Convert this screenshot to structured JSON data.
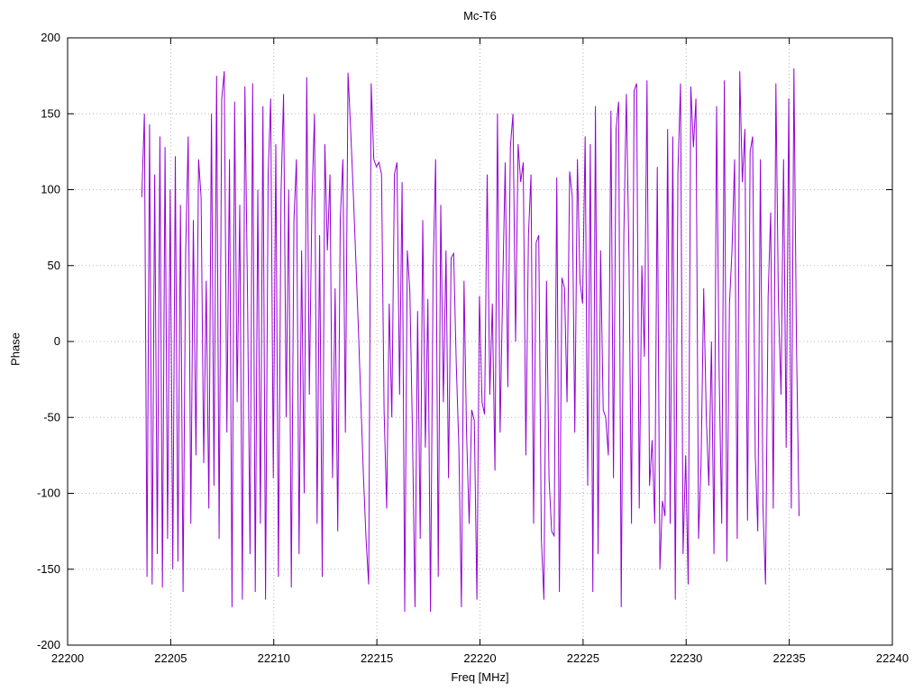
{
  "window": {
    "background": "#ffffff"
  },
  "chart_data": {
    "type": "line",
    "title": "Mc-T6",
    "xlabel": "Freq [MHz]",
    "ylabel": "Phase",
    "xlim": [
      22200,
      22240
    ],
    "ylim": [
      -200,
      200
    ],
    "x_ticks": [
      22200,
      22205,
      22210,
      22215,
      22220,
      22225,
      22230,
      22235,
      22240
    ],
    "y_ticks": [
      -200,
      -150,
      -100,
      -50,
      0,
      50,
      100,
      150,
      200
    ],
    "grid": "dotted",
    "grid_color": "#b3b3b3",
    "border_color": "#000000",
    "legend": "none",
    "series": [
      {
        "name": "Mc-T6",
        "color": "#9400d3",
        "x_start": 22203.6,
        "x_step": 0.125,
        "y_values": [
          95,
          150,
          -155,
          143,
          -160,
          110,
          -140,
          135,
          -162,
          128,
          -130,
          100,
          -150,
          122,
          -145,
          90,
          -165,
          60,
          135,
          -120,
          80,
          -75,
          120,
          95,
          -80,
          40,
          -110,
          150,
          -95,
          175,
          -130,
          160,
          178,
          -60,
          120,
          -175,
          158,
          -40,
          90,
          -170,
          168,
          30,
          -140,
          170,
          -165,
          100,
          -120,
          155,
          -170,
          110,
          160,
          -90,
          130,
          -155,
          98,
          163,
          -50,
          100,
          -162,
          80,
          120,
          -140,
          60,
          -100,
          174,
          -35,
          93,
          150,
          -120,
          70,
          -155,
          130,
          60,
          110,
          -90,
          35,
          -125,
          80,
          120,
          -60,
          177,
          140,
          100,
          55,
          10,
          -40,
          -90,
          -130,
          -160,
          170,
          120,
          115,
          118,
          110,
          -45,
          -110,
          25,
          -50,
          110,
          118,
          -35,
          105,
          -178,
          60,
          33,
          -60,
          -175,
          20,
          -130,
          80,
          -70,
          28,
          -178,
          45,
          120,
          -155,
          90,
          -40,
          60,
          -90,
          55,
          58,
          -15,
          -70,
          -175,
          40,
          -60,
          -120,
          -45,
          -52,
          -170,
          30,
          -40,
          -48,
          110,
          -35,
          25,
          -85,
          150,
          -60,
          35,
          118,
          -30,
          128,
          150,
          0,
          130,
          105,
          118,
          -75,
          70,
          110,
          -120,
          65,
          70,
          -130,
          -170,
          40,
          -90,
          -125,
          -128,
          108,
          -165,
          42,
          35,
          -40,
          112,
          95,
          -60,
          120,
          40,
          25,
          135,
          -95,
          130,
          -165,
          155,
          -140,
          60,
          -45,
          -50,
          -75,
          152,
          -90,
          140,
          158,
          -175,
          70,
          163,
          55,
          -120,
          165,
          170,
          -110,
          50,
          -10,
          172,
          -95,
          -65,
          -120,
          115,
          -150,
          -105,
          -115,
          140,
          -120,
          135,
          -170,
          112,
          170,
          -140,
          -75,
          -160,
          168,
          128,
          160,
          -130,
          -80,
          35,
          -50,
          -95,
          0,
          -140,
          155,
          -20,
          -120,
          172,
          -145,
          25,
          60,
          120,
          -130,
          178,
          105,
          140,
          -118,
          125,
          135,
          -75,
          -125,
          120,
          -110,
          -160,
          30,
          85,
          -110,
          170,
          25,
          -35,
          120,
          -70,
          160,
          -110,
          180,
          0,
          -115
        ]
      }
    ]
  }
}
